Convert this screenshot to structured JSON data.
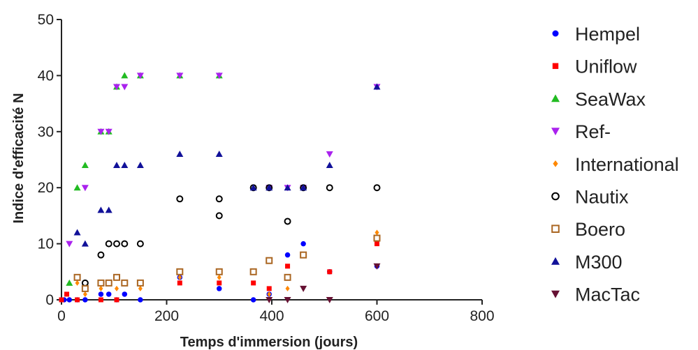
{
  "chart_data": {
    "type": "scatter",
    "title": "",
    "xlabel": "Temps d'immersion (jours)",
    "ylabel": "Indice d'efficacité N",
    "xlim": [
      0,
      800
    ],
    "ylim": [
      0,
      50
    ],
    "xticks": [
      "0",
      "200",
      "400",
      "600",
      "800"
    ],
    "yticks": [
      "0",
      "10",
      "20",
      "30",
      "40",
      "50"
    ],
    "grid": false,
    "legend_position": "right",
    "series": [
      {
        "name": "Hempel",
        "marker": "circle",
        "color": "#0000ff",
        "points": [
          [
            0,
            0
          ],
          [
            5,
            0
          ],
          [
            15,
            0
          ],
          [
            30,
            0
          ],
          [
            45,
            0
          ],
          [
            75,
            1
          ],
          [
            90,
            1
          ],
          [
            105,
            0
          ],
          [
            120,
            1
          ],
          [
            150,
            0
          ],
          [
            225,
            4
          ],
          [
            300,
            2
          ],
          [
            365,
            0
          ],
          [
            395,
            1
          ],
          [
            430,
            8
          ],
          [
            460,
            10
          ],
          [
            510,
            5
          ],
          [
            600,
            6
          ]
        ]
      },
      {
        "name": "Uniflow",
        "marker": "square",
        "color": "#ff0000",
        "points": [
          [
            0,
            0
          ],
          [
            10,
            1
          ],
          [
            30,
            0
          ],
          [
            75,
            0
          ],
          [
            105,
            0
          ],
          [
            225,
            3
          ],
          [
            300,
            3
          ],
          [
            365,
            3
          ],
          [
            395,
            2
          ],
          [
            430,
            6
          ],
          [
            510,
            5
          ],
          [
            600,
            10
          ]
        ]
      },
      {
        "name": "SeaWax",
        "marker": "triangle-up",
        "color": "#22bb22",
        "points": [
          [
            15,
            3
          ],
          [
            30,
            20
          ],
          [
            45,
            24
          ],
          [
            75,
            30
          ],
          [
            90,
            30
          ],
          [
            105,
            38
          ],
          [
            120,
            40
          ],
          [
            150,
            40
          ],
          [
            225,
            40
          ],
          [
            300,
            40
          ]
        ]
      },
      {
        "name": "Ref-",
        "marker": "triangle-down",
        "color": "#aa22ee",
        "points": [
          [
            15,
            10
          ],
          [
            45,
            20
          ],
          [
            75,
            30
          ],
          [
            90,
            30
          ],
          [
            105,
            38
          ],
          [
            120,
            38
          ],
          [
            150,
            40
          ],
          [
            225,
            40
          ],
          [
            300,
            40
          ],
          [
            395,
            20
          ],
          [
            430,
            20
          ],
          [
            460,
            20
          ],
          [
            510,
            26
          ],
          [
            600,
            38
          ]
        ]
      },
      {
        "name": "International",
        "marker": "diamond",
        "color": "#ff8800",
        "points": [
          [
            30,
            3
          ],
          [
            45,
            1
          ],
          [
            75,
            2
          ],
          [
            105,
            2
          ],
          [
            150,
            2
          ],
          [
            225,
            4
          ],
          [
            300,
            4
          ],
          [
            395,
            1
          ],
          [
            430,
            2
          ],
          [
            600,
            12
          ]
        ]
      },
      {
        "name": "Nautix",
        "marker": "circle-open",
        "color": "#000000",
        "points": [
          [
            45,
            3
          ],
          [
            75,
            8
          ],
          [
            90,
            10
          ],
          [
            105,
            10
          ],
          [
            120,
            10
          ],
          [
            150,
            10
          ],
          [
            225,
            18
          ],
          [
            300,
            18
          ],
          [
            300,
            15
          ],
          [
            365,
            20
          ],
          [
            395,
            20
          ],
          [
            430,
            14
          ],
          [
            460,
            20
          ],
          [
            510,
            20
          ],
          [
            600,
            20
          ]
        ]
      },
      {
        "name": "Boero",
        "marker": "square-open",
        "color": "#aa6622",
        "points": [
          [
            30,
            4
          ],
          [
            45,
            2
          ],
          [
            75,
            3
          ],
          [
            90,
            3
          ],
          [
            105,
            4
          ],
          [
            120,
            3
          ],
          [
            150,
            3
          ],
          [
            225,
            5
          ],
          [
            300,
            5
          ],
          [
            365,
            5
          ],
          [
            395,
            7
          ],
          [
            430,
            4
          ],
          [
            460,
            8
          ],
          [
            600,
            11
          ]
        ]
      },
      {
        "name": "M300",
        "marker": "triangle-up",
        "color": "#111199",
        "points": [
          [
            30,
            12
          ],
          [
            45,
            10
          ],
          [
            75,
            16
          ],
          [
            90,
            16
          ],
          [
            105,
            24
          ],
          [
            120,
            24
          ],
          [
            150,
            24
          ],
          [
            225,
            26
          ],
          [
            300,
            26
          ],
          [
            365,
            20
          ],
          [
            395,
            20
          ],
          [
            430,
            20
          ],
          [
            460,
            20
          ],
          [
            510,
            24
          ],
          [
            600,
            38
          ]
        ]
      },
      {
        "name": "MacTac",
        "marker": "triangle-down",
        "color": "#661133",
        "points": [
          [
            395,
            0
          ],
          [
            430,
            0
          ],
          [
            460,
            2
          ],
          [
            510,
            0
          ],
          [
            600,
            6
          ]
        ]
      }
    ]
  }
}
